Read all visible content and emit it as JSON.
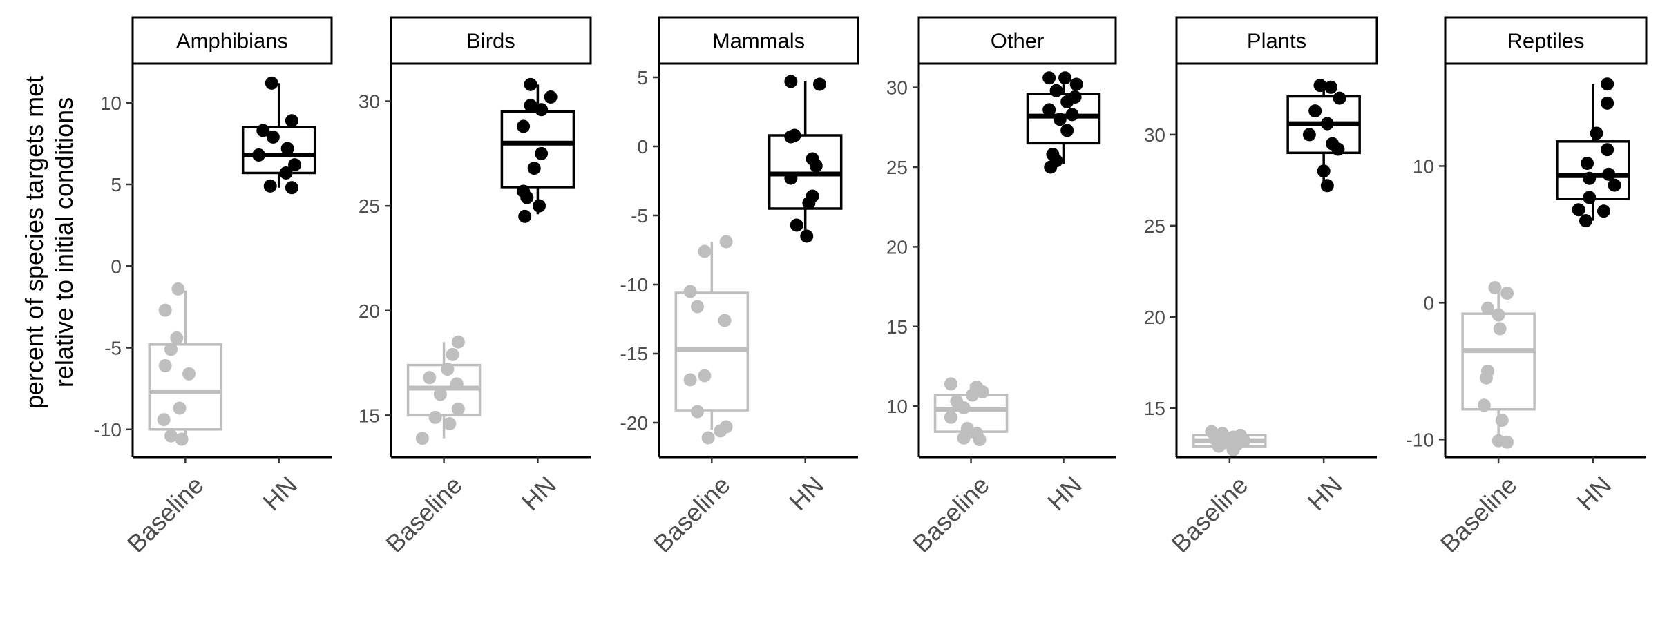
{
  "chart_data": {
    "type": "box",
    "ylabel_lines": [
      "percent of species targets met",
      "relative to initial conditions"
    ],
    "categories": [
      "Baseline",
      "HN"
    ],
    "colors": {
      "Baseline": "#bebebe",
      "HN": "#000000"
    },
    "facets": [
      {
        "name": "Amphibians",
        "ylim": [
          -11.7,
          12.4
        ],
        "yticks": [
          10,
          5,
          0,
          -5,
          -10
        ],
        "ytick_labels": [
          "10",
          "5",
          "0",
          "-5",
          "-10"
        ],
        "series": [
          {
            "name": "Baseline",
            "box": {
              "low": -10.5,
              "q1": -10.0,
              "median": -7.7,
              "q3": -4.8,
              "high": -1.5
            },
            "points": [
              [
                -0.1,
                -1.4
              ],
              [
                -0.28,
                -2.7
              ],
              [
                -0.12,
                -4.4
              ],
              [
                -0.2,
                -5.1
              ],
              [
                -0.28,
                -6.1
              ],
              [
                0.05,
                -6.6
              ],
              [
                -0.08,
                -8.7
              ],
              [
                -0.3,
                -9.4
              ],
              [
                -0.2,
                -10.4
              ],
              [
                -0.05,
                -10.6
              ]
            ]
          },
          {
            "name": "HN",
            "box": {
              "low": 4.8,
              "q1": 5.7,
              "median": 6.8,
              "q3": 8.5,
              "high": 11.2
            },
            "points": [
              [
                -0.1,
                11.2
              ],
              [
                0.18,
                8.9
              ],
              [
                -0.22,
                8.3
              ],
              [
                -0.08,
                7.9
              ],
              [
                0.12,
                7.2
              ],
              [
                -0.28,
                6.8
              ],
              [
                0.22,
                6.2
              ],
              [
                0.1,
                5.7
              ],
              [
                -0.12,
                4.9
              ],
              [
                0.18,
                4.8
              ]
            ]
          }
        ]
      },
      {
        "name": "Birds",
        "ylim": [
          13.0,
          31.8
        ],
        "yticks": [
          30,
          25,
          20,
          15
        ],
        "ytick_labels": [
          "30",
          "25",
          "20",
          "15"
        ],
        "series": [
          {
            "name": "Baseline",
            "box": {
              "low": 13.9,
              "q1": 15.0,
              "median": 16.3,
              "q3": 17.4,
              "high": 18.5
            },
            "points": [
              [
                0.2,
                18.5
              ],
              [
                0.12,
                17.9
              ],
              [
                0.05,
                17.2
              ],
              [
                -0.2,
                16.8
              ],
              [
                0.18,
                16.5
              ],
              [
                -0.05,
                16.0
              ],
              [
                0.2,
                15.3
              ],
              [
                -0.12,
                14.9
              ],
              [
                0.08,
                14.6
              ],
              [
                -0.3,
                13.9
              ]
            ]
          },
          {
            "name": "HN",
            "box": {
              "low": 24.6,
              "q1": 25.9,
              "median": 28.0,
              "q3": 29.5,
              "high": 30.8
            },
            "points": [
              [
                -0.1,
                30.8
              ],
              [
                0.18,
                30.2
              ],
              [
                -0.1,
                29.8
              ],
              [
                0.05,
                29.6
              ],
              [
                -0.2,
                28.8
              ],
              [
                0.05,
                27.5
              ],
              [
                -0.05,
                26.8
              ],
              [
                -0.2,
                25.7
              ],
              [
                -0.15,
                25.4
              ],
              [
                0.02,
                25.0
              ],
              [
                -0.18,
                24.5
              ]
            ]
          }
        ]
      },
      {
        "name": "Mammals",
        "ylim": [
          -22.5,
          6.0
        ],
        "yticks": [
          5,
          0,
          -5,
          -10,
          -15,
          -20
        ],
        "ytick_labels": [
          "5",
          "0",
          "-5",
          "-10",
          "-15",
          "-20"
        ],
        "series": [
          {
            "name": "Baseline",
            "box": {
              "low": -20.5,
              "q1": -19.1,
              "median": -14.7,
              "q3": -10.6,
              "high": -6.9
            },
            "points": [
              [
                0.2,
                -6.9
              ],
              [
                -0.1,
                -7.6
              ],
              [
                -0.3,
                -10.5
              ],
              [
                -0.2,
                -11.6
              ],
              [
                0.18,
                -12.6
              ],
              [
                -0.1,
                -16.6
              ],
              [
                -0.3,
                -16.9
              ],
              [
                -0.2,
                -19.2
              ],
              [
                0.2,
                -20.3
              ],
              [
                0.12,
                -20.6
              ],
              [
                -0.05,
                -21.1
              ]
            ]
          },
          {
            "name": "HN",
            "box": {
              "low": -6.4,
              "q1": -4.5,
              "median": -2.0,
              "q3": 0.8,
              "high": 4.7
            },
            "points": [
              [
                -0.2,
                4.7
              ],
              [
                0.2,
                4.5
              ],
              [
                -0.15,
                0.8
              ],
              [
                -0.2,
                0.7
              ],
              [
                0.1,
                -0.9
              ],
              [
                0.15,
                -1.4
              ],
              [
                -0.2,
                -2.3
              ],
              [
                0.1,
                -3.6
              ],
              [
                0.05,
                -4.1
              ],
              [
                -0.12,
                -5.7
              ],
              [
                0.02,
                -6.5
              ]
            ]
          }
        ]
      },
      {
        "name": "Other",
        "ylim": [
          6.8,
          31.5
        ],
        "yticks": [
          30,
          25,
          20,
          15,
          10
        ],
        "ytick_labels": [
          "30",
          "25",
          "20",
          "15",
          "10"
        ],
        "series": [
          {
            "name": "Baseline",
            "box": {
              "low": 8.0,
              "q1": 8.4,
              "median": 9.8,
              "q3": 10.7,
              "high": 11.4
            },
            "points": [
              [
                -0.28,
                11.4
              ],
              [
                0.08,
                11.2
              ],
              [
                0.16,
                10.9
              ],
              [
                0.02,
                10.7
              ],
              [
                -0.2,
                10.3
              ],
              [
                -0.1,
                9.9
              ],
              [
                -0.28,
                9.3
              ],
              [
                -0.05,
                8.6
              ],
              [
                0.08,
                8.3
              ],
              [
                -0.1,
                8.0
              ],
              [
                0.12,
                7.9
              ]
            ]
          },
          {
            "name": "HN",
            "box": {
              "low": 25.2,
              "q1": 26.5,
              "median": 28.2,
              "q3": 29.6,
              "high": 30.6
            },
            "points": [
              [
                -0.2,
                30.6
              ],
              [
                0.02,
                30.6
              ],
              [
                0.18,
                30.2
              ],
              [
                -0.1,
                29.8
              ],
              [
                0.16,
                29.4
              ],
              [
                0.05,
                29.1
              ],
              [
                -0.2,
                28.6
              ],
              [
                0.12,
                28.3
              ],
              [
                -0.05,
                28.0
              ],
              [
                0.05,
                27.3
              ],
              [
                -0.15,
                25.8
              ],
              [
                -0.1,
                25.4
              ],
              [
                -0.18,
                25.0
              ]
            ]
          }
        ]
      },
      {
        "name": "Plants",
        "ylim": [
          12.3,
          33.9
        ],
        "yticks": [
          30,
          25,
          20,
          15
        ],
        "ytick_labels": [
          "30",
          "25",
          "20",
          "15"
        ],
        "series": [
          {
            "name": "Baseline",
            "box": {
              "low": 12.9,
              "q1": 12.9,
              "median": 13.2,
              "q3": 13.5,
              "high": 13.6
            },
            "points": [
              [
                -0.25,
                13.7
              ],
              [
                -0.1,
                13.6
              ],
              [
                0.15,
                13.5
              ],
              [
                0.05,
                13.4
              ],
              [
                -0.2,
                13.3
              ],
              [
                0.2,
                13.2
              ],
              [
                -0.05,
                13.1
              ],
              [
                0.1,
                13.0
              ],
              [
                -0.15,
                12.9
              ],
              [
                0.05,
                12.7
              ]
            ]
          },
          {
            "name": "HN",
            "box": {
              "low": 27.2,
              "q1": 29.0,
              "median": 30.6,
              "q3": 32.1,
              "high": 32.7
            },
            "points": [
              [
                -0.05,
                32.7
              ],
              [
                0.1,
                32.6
              ],
              [
                0.22,
                32.0
              ],
              [
                -0.12,
                31.3
              ],
              [
                0.05,
                30.6
              ],
              [
                -0.2,
                30.0
              ],
              [
                0.12,
                29.5
              ],
              [
                0.2,
                29.2
              ],
              [
                0.0,
                28.0
              ],
              [
                0.05,
                27.2
              ]
            ]
          }
        ]
      },
      {
        "name": "Reptiles",
        "ylim": [
          -11.3,
          17.5
        ],
        "yticks": [
          10,
          0,
          -10
        ],
        "ytick_labels": [
          "10",
          "0",
          "-10"
        ],
        "series": [
          {
            "name": "Baseline",
            "box": {
              "low": -10.2,
              "q1": -7.8,
              "median": -3.5,
              "q3": -0.8,
              "high": 0.9
            },
            "points": [
              [
                -0.05,
                1.1
              ],
              [
                0.12,
                0.7
              ],
              [
                -0.15,
                -0.4
              ],
              [
                0.0,
                -0.9
              ],
              [
                0.02,
                -1.9
              ],
              [
                -0.15,
                -5.0
              ],
              [
                -0.17,
                -5.5
              ],
              [
                -0.2,
                -7.5
              ],
              [
                0.05,
                -8.6
              ],
              [
                0.0,
                -10.1
              ],
              [
                0.12,
                -10.2
              ]
            ]
          },
          {
            "name": "HN",
            "box": {
              "low": 6.0,
              "q1": 7.6,
              "median": 9.3,
              "q3": 11.8,
              "high": 16.0
            },
            "points": [
              [
                0.2,
                16.0
              ],
              [
                0.2,
                14.6
              ],
              [
                0.05,
                12.4
              ],
              [
                0.2,
                11.2
              ],
              [
                -0.08,
                10.2
              ],
              [
                0.22,
                9.4
              ],
              [
                -0.05,
                9.1
              ],
              [
                0.3,
                8.6
              ],
              [
                -0.05,
                7.7
              ],
              [
                -0.2,
                6.8
              ],
              [
                0.15,
                6.7
              ],
              [
                -0.1,
                6.0
              ]
            ]
          }
        ]
      }
    ]
  }
}
